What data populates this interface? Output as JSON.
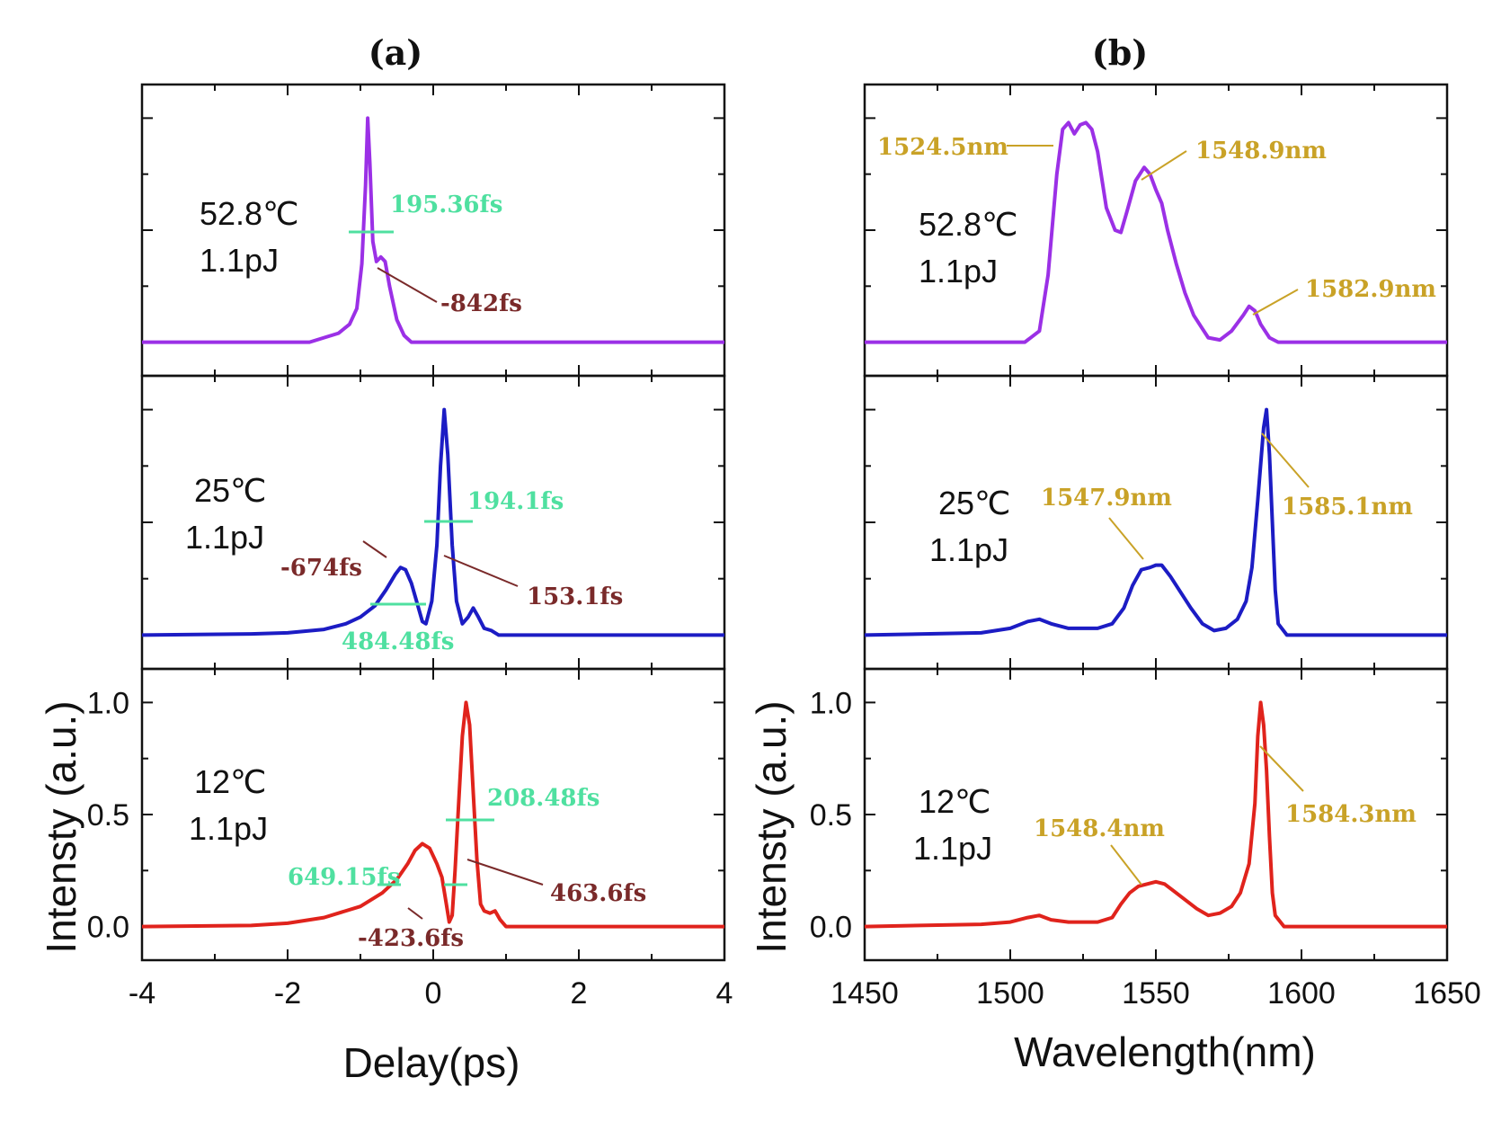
{
  "chart_data": [
    {
      "type": "line",
      "title": "(a)",
      "xlabel": "Delay(ps)",
      "ylabel": "Intensty (a.u.)",
      "xlim": [
        -4,
        4
      ],
      "xticks": [
        "-4",
        "-2",
        "0",
        "2",
        "4"
      ],
      "ylim": [
        -0.15,
        1.15
      ],
      "yticks": [
        "0.0",
        "0.5",
        "1.0"
      ],
      "panels": [
        {
          "condition": [
            "52.8℃",
            "1.1pJ"
          ],
          "color": "#9b30e6",
          "points": [
            [
              -4,
              0
            ],
            [
              -1.7,
              0
            ],
            [
              -1.5,
              0.02
            ],
            [
              -1.3,
              0.04
            ],
            [
              -1.15,
              0.08
            ],
            [
              -1.05,
              0.15
            ],
            [
              -0.98,
              0.35
            ],
            [
              -0.93,
              0.7
            ],
            [
              -0.9,
              1.0
            ],
            [
              -0.87,
              0.8
            ],
            [
              -0.83,
              0.45
            ],
            [
              -0.78,
              0.36
            ],
            [
              -0.72,
              0.38
            ],
            [
              -0.66,
              0.36
            ],
            [
              -0.6,
              0.25
            ],
            [
              -0.5,
              0.1
            ],
            [
              -0.4,
              0.03
            ],
            [
              -0.3,
              0
            ],
            [
              4,
              0
            ]
          ],
          "annotations": [
            {
              "text": "195.36fs",
              "kind": "fwhm"
            },
            {
              "text": "-842fs",
              "kind": "delay"
            }
          ]
        },
        {
          "condition": [
            "25℃",
            "1.1pJ"
          ],
          "color": "#1c1cc4",
          "points": [
            [
              -4,
              0
            ],
            [
              -2.5,
              0.005
            ],
            [
              -2,
              0.01
            ],
            [
              -1.5,
              0.025
            ],
            [
              -1.2,
              0.05
            ],
            [
              -1,
              0.08
            ],
            [
              -0.8,
              0.13
            ],
            [
              -0.65,
              0.2
            ],
            [
              -0.52,
              0.27
            ],
            [
              -0.45,
              0.3
            ],
            [
              -0.38,
              0.29
            ],
            [
              -0.3,
              0.23
            ],
            [
              -0.22,
              0.14
            ],
            [
              -0.15,
              0.06
            ],
            [
              -0.1,
              0.05
            ],
            [
              -0.02,
              0.15
            ],
            [
              0.05,
              0.4
            ],
            [
              0.1,
              0.75
            ],
            [
              0.15,
              1.0
            ],
            [
              0.2,
              0.8
            ],
            [
              0.26,
              0.4
            ],
            [
              0.32,
              0.15
            ],
            [
              0.4,
              0.05
            ],
            [
              0.48,
              0.08
            ],
            [
              0.55,
              0.12
            ],
            [
              0.62,
              0.08
            ],
            [
              0.7,
              0.03
            ],
            [
              0.8,
              0.02
            ],
            [
              0.9,
              0
            ],
            [
              4,
              0
            ]
          ],
          "annotations": [
            {
              "text": "194.1fs",
              "kind": "fwhm"
            },
            {
              "text": "-674fs",
              "kind": "delay"
            },
            {
              "text": "153.1fs",
              "kind": "delay"
            },
            {
              "text": "484.48fs",
              "kind": "fwhm"
            }
          ]
        },
        {
          "condition": [
            "12℃",
            "1.1pJ"
          ],
          "color": "#e0231c",
          "points": [
            [
              -4,
              0
            ],
            [
              -2.5,
              0.005
            ],
            [
              -2,
              0.015
            ],
            [
              -1.5,
              0.04
            ],
            [
              -1,
              0.09
            ],
            [
              -0.7,
              0.15
            ],
            [
              -0.5,
              0.21
            ],
            [
              -0.35,
              0.28
            ],
            [
              -0.25,
              0.34
            ],
            [
              -0.15,
              0.37
            ],
            [
              -0.05,
              0.35
            ],
            [
              0.05,
              0.28
            ],
            [
              0.12,
              0.22
            ],
            [
              0.18,
              0.1
            ],
            [
              0.22,
              0.02
            ],
            [
              0.26,
              0.05
            ],
            [
              0.3,
              0.25
            ],
            [
              0.35,
              0.55
            ],
            [
              0.4,
              0.85
            ],
            [
              0.45,
              1.0
            ],
            [
              0.5,
              0.9
            ],
            [
              0.55,
              0.6
            ],
            [
              0.6,
              0.3
            ],
            [
              0.65,
              0.1
            ],
            [
              0.7,
              0.07
            ],
            [
              0.78,
              0.06
            ],
            [
              0.85,
              0.07
            ],
            [
              0.92,
              0.03
            ],
            [
              1.0,
              0
            ],
            [
              4,
              0
            ]
          ],
          "annotations": [
            {
              "text": "208.48fs",
              "kind": "fwhm"
            },
            {
              "text": "649.15fs",
              "kind": "fwhm"
            },
            {
              "text": "463.6fs",
              "kind": "delay"
            },
            {
              "text": "-423.6fs",
              "kind": "delay"
            }
          ]
        }
      ]
    },
    {
      "type": "line",
      "title": "(b)",
      "xlabel": "Wavelength(nm)",
      "ylabel": "Intensty (a.u.)",
      "xlim": [
        1450,
        1650
      ],
      "xticks": [
        "1450",
        "1500",
        "1550",
        "1600",
        "1650"
      ],
      "ylim": [
        -0.15,
        1.15
      ],
      "yticks": [
        "0.0",
        "0.5",
        "1.0"
      ],
      "panels": [
        {
          "condition": [
            "52.8℃",
            "1.1pJ"
          ],
          "color": "#9b30e6",
          "points": [
            [
              1450,
              0
            ],
            [
              1505,
              0
            ],
            [
              1510,
              0.05
            ],
            [
              1513,
              0.3
            ],
            [
              1516,
              0.75
            ],
            [
              1518,
              0.95
            ],
            [
              1520,
              0.98
            ],
            [
              1522,
              0.93
            ],
            [
              1524,
              0.97
            ],
            [
              1526,
              0.98
            ],
            [
              1528,
              0.95
            ],
            [
              1530,
              0.85
            ],
            [
              1533,
              0.6
            ],
            [
              1536,
              0.5
            ],
            [
              1538,
              0.49
            ],
            [
              1540,
              0.58
            ],
            [
              1543,
              0.72
            ],
            [
              1546,
              0.78
            ],
            [
              1548,
              0.75
            ],
            [
              1550,
              0.68
            ],
            [
              1552,
              0.62
            ],
            [
              1554,
              0.5
            ],
            [
              1557,
              0.35
            ],
            [
              1560,
              0.22
            ],
            [
              1563,
              0.12
            ],
            [
              1566,
              0.06
            ],
            [
              1568,
              0.02
            ],
            [
              1572,
              0.01
            ],
            [
              1576,
              0.05
            ],
            [
              1580,
              0.12
            ],
            [
              1582,
              0.16
            ],
            [
              1584,
              0.14
            ],
            [
              1586,
              0.08
            ],
            [
              1589,
              0.02
            ],
            [
              1592,
              0
            ],
            [
              1650,
              0
            ]
          ],
          "annotations": [
            {
              "text": "1524.5nm",
              "kind": "peak"
            },
            {
              "text": "1548.9nm",
              "kind": "peak"
            },
            {
              "text": "1582.9nm",
              "kind": "peak"
            }
          ]
        },
        {
          "condition": [
            "25℃",
            "1.1pJ"
          ],
          "color": "#1c1cc4",
          "points": [
            [
              1450,
              0
            ],
            [
              1490,
              0.01
            ],
            [
              1500,
              0.03
            ],
            [
              1506,
              0.06
            ],
            [
              1510,
              0.07
            ],
            [
              1514,
              0.05
            ],
            [
              1520,
              0.03
            ],
            [
              1525,
              0.03
            ],
            [
              1530,
              0.03
            ],
            [
              1535,
              0.05
            ],
            [
              1539,
              0.12
            ],
            [
              1542,
              0.22
            ],
            [
              1545,
              0.29
            ],
            [
              1548,
              0.3
            ],
            [
              1550,
              0.31
            ],
            [
              1552,
              0.31
            ],
            [
              1555,
              0.26
            ],
            [
              1558,
              0.2
            ],
            [
              1562,
              0.12
            ],
            [
              1566,
              0.05
            ],
            [
              1570,
              0.02
            ],
            [
              1574,
              0.03
            ],
            [
              1578,
              0.07
            ],
            [
              1581,
              0.15
            ],
            [
              1583,
              0.3
            ],
            [
              1585,
              0.6
            ],
            [
              1587,
              0.92
            ],
            [
              1588,
              1.0
            ],
            [
              1589,
              0.8
            ],
            [
              1590,
              0.5
            ],
            [
              1591,
              0.2
            ],
            [
              1592,
              0.05
            ],
            [
              1595,
              0
            ],
            [
              1650,
              0
            ]
          ],
          "annotations": [
            {
              "text": "1547.9nm",
              "kind": "peak"
            },
            {
              "text": "1585.1nm",
              "kind": "peak"
            }
          ]
        },
        {
          "condition": [
            "12℃",
            "1.1pJ"
          ],
          "color": "#e0231c",
          "points": [
            [
              1450,
              0
            ],
            [
              1490,
              0.01
            ],
            [
              1500,
              0.02
            ],
            [
              1506,
              0.04
            ],
            [
              1510,
              0.05
            ],
            [
              1514,
              0.03
            ],
            [
              1520,
              0.02
            ],
            [
              1525,
              0.02
            ],
            [
              1530,
              0.02
            ],
            [
              1535,
              0.04
            ],
            [
              1538,
              0.1
            ],
            [
              1541,
              0.15
            ],
            [
              1544,
              0.18
            ],
            [
              1547,
              0.19
            ],
            [
              1550,
              0.2
            ],
            [
              1553,
              0.19
            ],
            [
              1556,
              0.16
            ],
            [
              1560,
              0.12
            ],
            [
              1564,
              0.08
            ],
            [
              1568,
              0.05
            ],
            [
              1572,
              0.06
            ],
            [
              1576,
              0.09
            ],
            [
              1579,
              0.15
            ],
            [
              1582,
              0.28
            ],
            [
              1584,
              0.55
            ],
            [
              1585,
              0.85
            ],
            [
              1586,
              1.0
            ],
            [
              1587,
              0.9
            ],
            [
              1588,
              0.7
            ],
            [
              1589,
              0.4
            ],
            [
              1590,
              0.15
            ],
            [
              1591,
              0.05
            ],
            [
              1594,
              0
            ],
            [
              1650,
              0
            ]
          ],
          "annotations": [
            {
              "text": "1548.4nm",
              "kind": "peak"
            },
            {
              "text": "1584.3nm",
              "kind": "peak"
            }
          ]
        }
      ]
    }
  ],
  "colors": {
    "fwhm": "#4fe0a0",
    "delay": "#7a2a2a",
    "peak": "#c9a227"
  }
}
